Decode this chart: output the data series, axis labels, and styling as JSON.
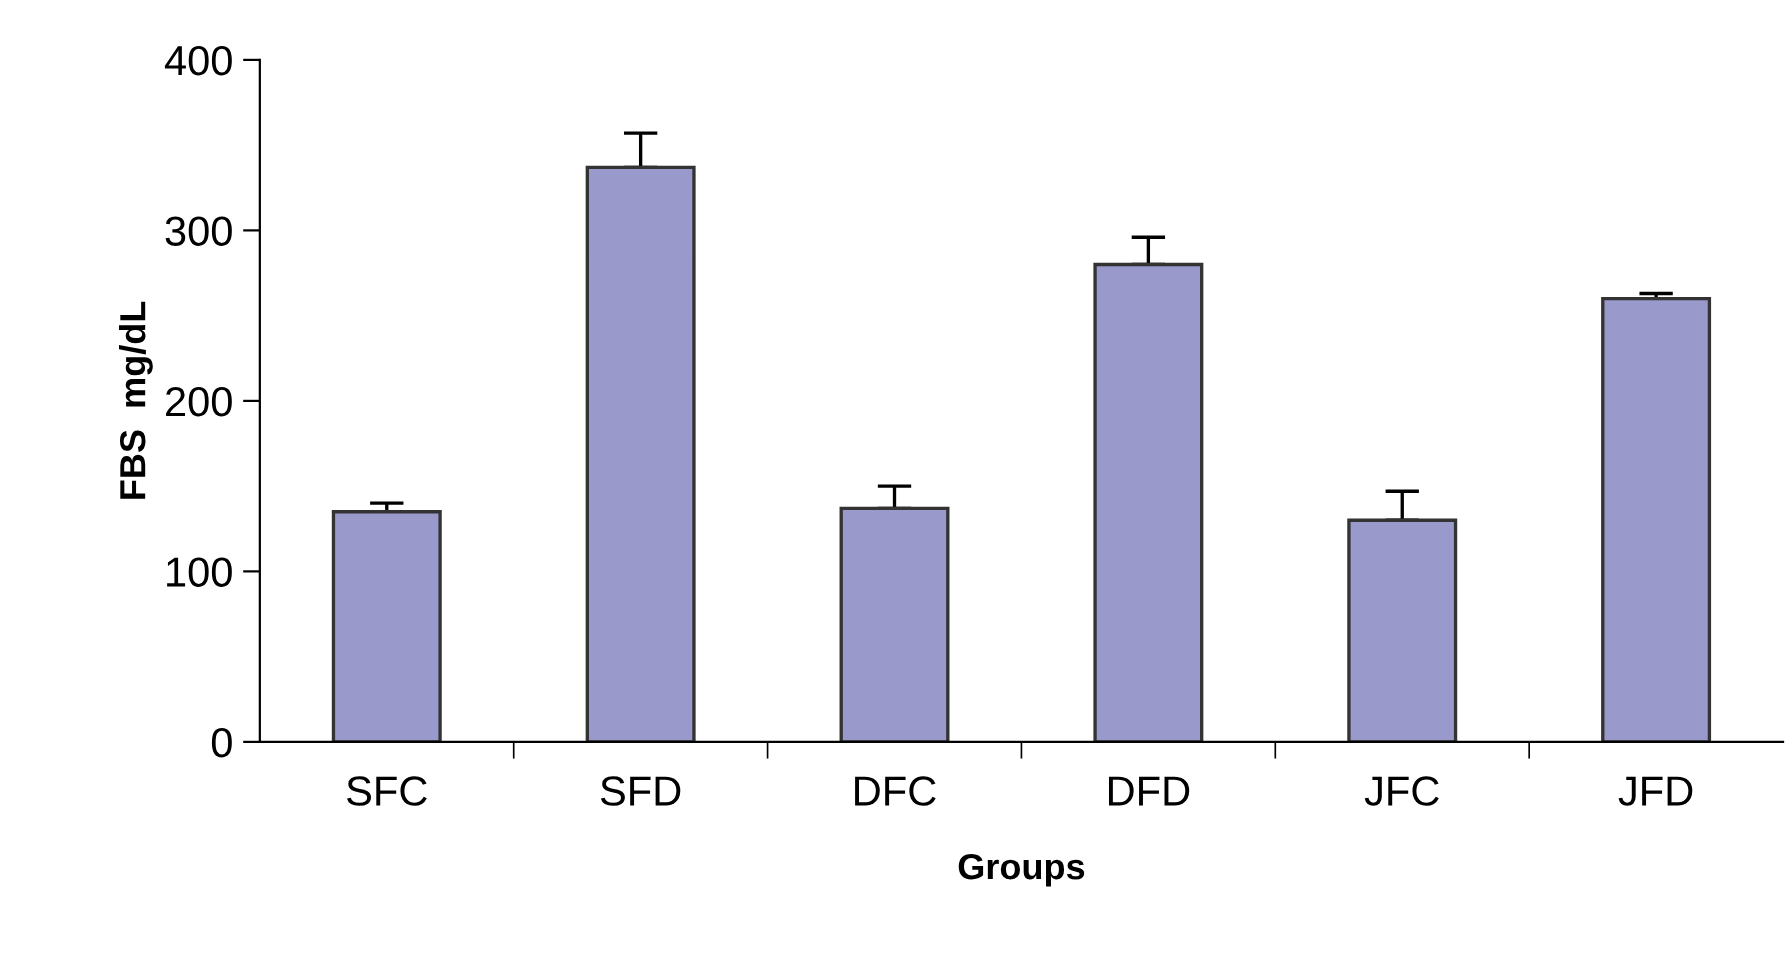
{
  "chart_data": {
    "type": "bar",
    "xlabel": "Groups",
    "ylabel": "FBS  mg/dL",
    "categories": [
      "SFC",
      "SFD",
      "DFC",
      "DFD",
      "JFC",
      "JFD"
    ],
    "values": [
      135,
      337,
      137,
      280,
      130,
      260
    ],
    "errors": [
      [
        135,
        140
      ],
      [
        337,
        357
      ],
      [
        137,
        150
      ],
      [
        280,
        296
      ],
      [
        130,
        147
      ],
      [
        260,
        263
      ]
    ],
    "color": "#9999cc",
    "ylim": [
      0,
      400
    ],
    "yticks": [
      0,
      100,
      200,
      300,
      400
    ],
    "grid": false,
    "legend": false
  }
}
